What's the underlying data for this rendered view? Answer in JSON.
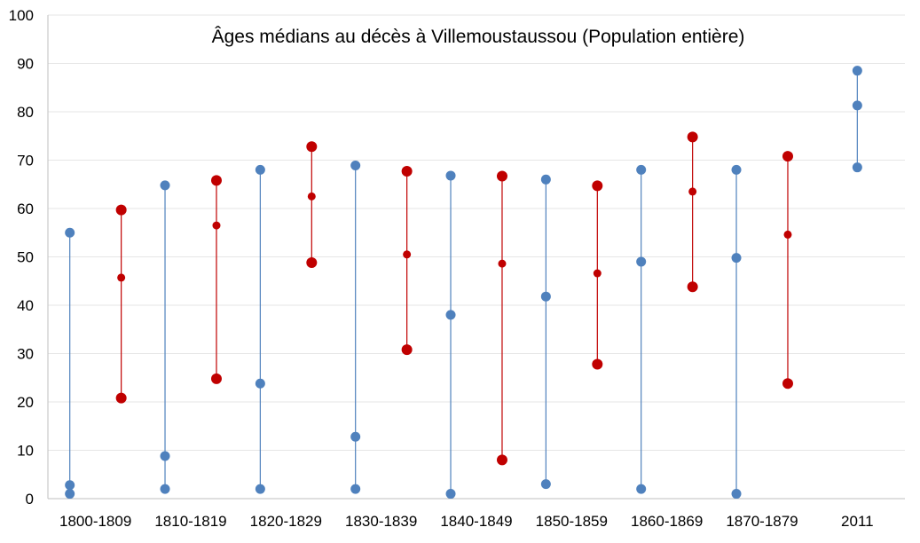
{
  "chart_data": {
    "type": "scatter",
    "title": "Âges médians au décès à Villemoustaussou (Population entière)",
    "xlabel": "",
    "ylabel": "",
    "ylim": [
      0,
      100
    ],
    "yticks": [
      0,
      10,
      20,
      30,
      40,
      50,
      60,
      70,
      80,
      90,
      100
    ],
    "grid": true,
    "legend": "none",
    "categories": [
      "1800-1809",
      "1810-1819",
      "1820-1829",
      "1830-1839",
      "1840-1849",
      "1850-1859",
      "1860-1869",
      "1870-1879",
      "2011"
    ],
    "series": [
      {
        "color": "#4f81bd",
        "low": [
          1,
          2,
          2,
          2,
          1,
          3,
          2,
          1,
          68.5
        ],
        "median": [
          2.8,
          8.8,
          23.8,
          12.8,
          38,
          41.8,
          49,
          49.8,
          81.3
        ],
        "high": [
          55,
          64.8,
          68,
          68.9,
          66.8,
          66,
          68,
          68,
          88.5
        ]
      },
      {
        "color": "#c00000",
        "low": [
          20.8,
          24.8,
          48.8,
          30.8,
          8,
          27.8,
          43.8,
          23.8,
          null
        ],
        "median": [
          45.7,
          56.5,
          62.5,
          50.5,
          48.6,
          46.6,
          63.5,
          54.6,
          null
        ],
        "high": [
          59.7,
          65.8,
          72.8,
          67.7,
          66.7,
          64.7,
          74.8,
          70.8,
          null
        ]
      }
    ]
  }
}
